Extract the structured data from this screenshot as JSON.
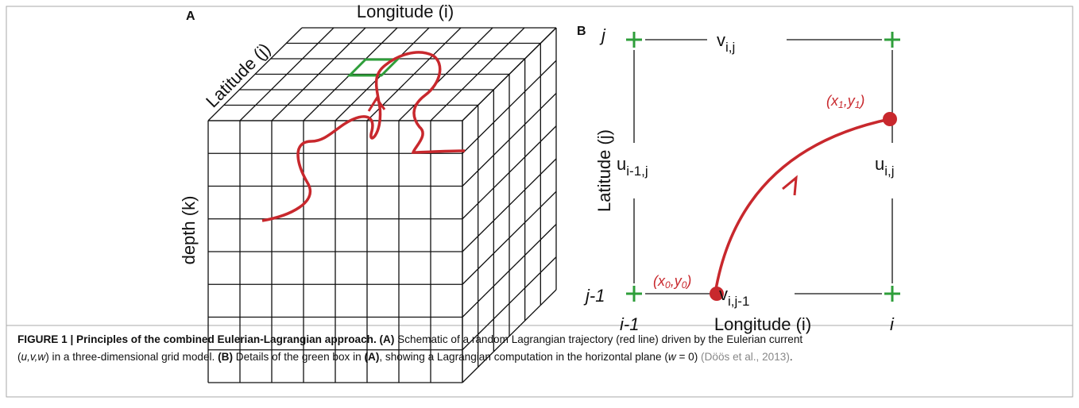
{
  "panel_a": {
    "letter": "A",
    "x_axis": "Longitude (i)",
    "y_axis": "Latitude (j)",
    "z_axis": "depth (k)"
  },
  "panel_b": {
    "letter": "B",
    "corner_j": "j",
    "corner_j_minus": "j-1",
    "corner_i_minus": "i-1",
    "corner_i": "i",
    "x_axis": "Longitude (i)",
    "y_axis": "Latitude (j)",
    "v_top": {
      "base": "v",
      "sub": "i,j"
    },
    "v_bottom": {
      "base": "v",
      "sub": "i,j-1"
    },
    "u_left": {
      "base": "u",
      "sub": "i-1,j"
    },
    "u_right": {
      "base": "u",
      "sub": "i,j"
    },
    "end_point": {
      "open": "(x",
      "x_sub": "1",
      "mid": ",y",
      "y_sub": "1",
      "close": ")"
    },
    "start_point": {
      "open": "(x",
      "x_sub": "0",
      "mid": ",y",
      "y_sub": "0",
      "close": ")"
    }
  },
  "caption": {
    "line1": [
      "FIGURE 1 | Principles of the combined Eulerian-Lagrangian approach. (A)",
      " Schematic of a random Lagrangian trajectory (red line) driven by the Eulerian current"
    ],
    "line2": [
      "(",
      "u,v,w",
      ") in a three-dimensional grid model. ",
      "(B)",
      " Details of the green box in ",
      "(A)",
      ", showing a Lagrangian computation in the horizontal plane (",
      "w",
      " = 0) ",
      "(Döös et al., 2013)",
      "."
    ]
  }
}
